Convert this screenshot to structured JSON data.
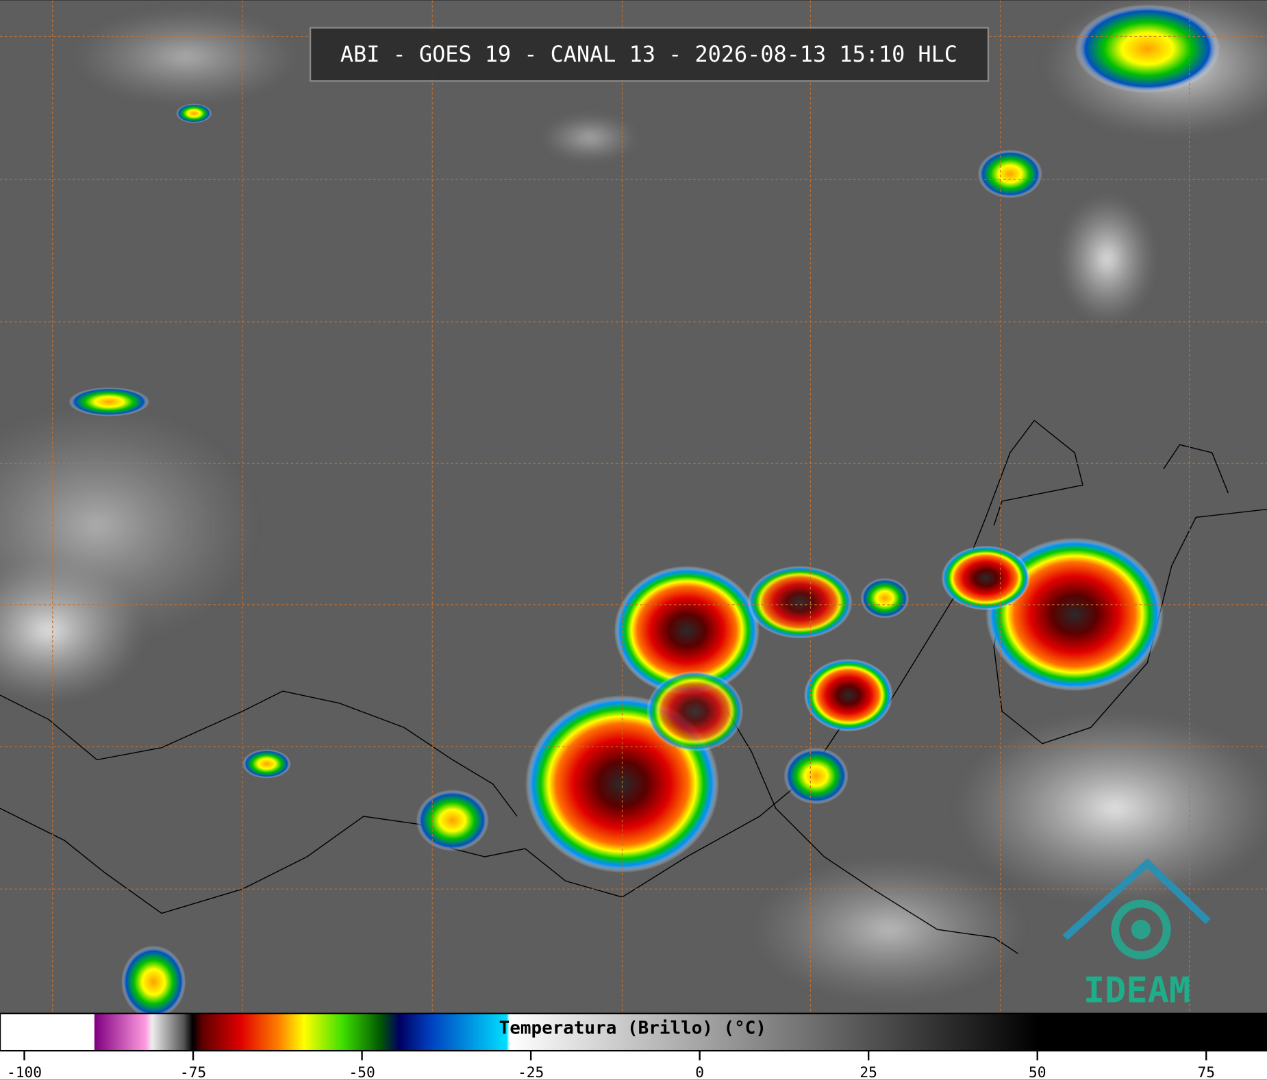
{
  "title": "ABI - GOES 19 - CANAL 13 - 2026-08-13 15:10 HLC",
  "logo": "IDEAM",
  "colorbar": {
    "label": "Temperatura (Brillo) (°C)",
    "lim": [
      -103.6,
      84
    ],
    "ticks": [
      -100,
      -75,
      -50,
      -25,
      0,
      25,
      50,
      75
    ]
  }
}
